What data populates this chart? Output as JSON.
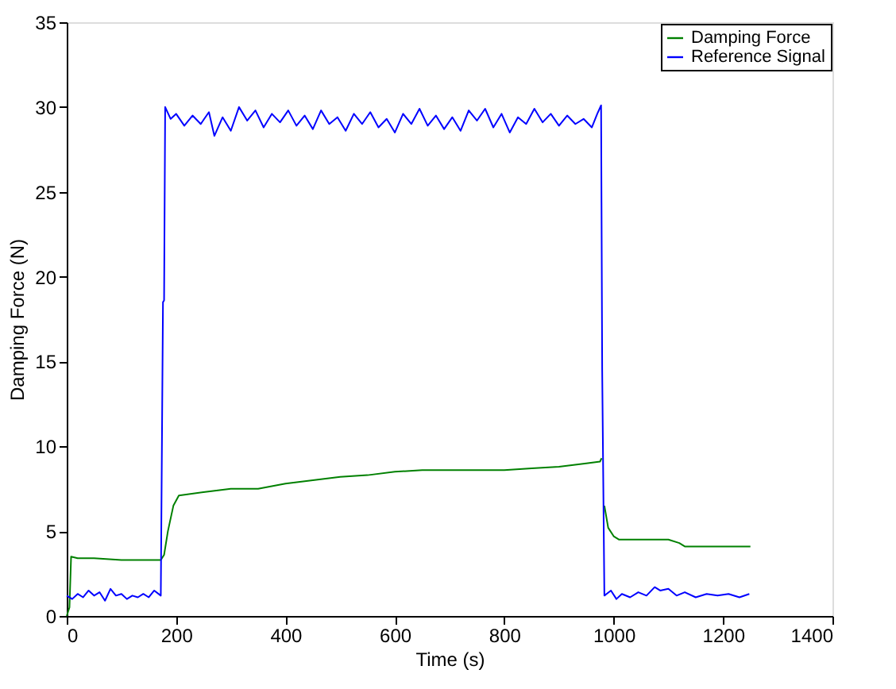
{
  "chart_data": {
    "type": "line",
    "xlabel": "Time (s)",
    "ylabel": "Damping Force (N)",
    "xlim": [
      0,
      1400
    ],
    "xticks": [
      0,
      200,
      400,
      600,
      800,
      1000,
      1200,
      1400
    ],
    "ylim": [
      0,
      35
    ],
    "yticks": [
      0,
      5,
      10,
      15,
      20,
      25,
      30,
      35
    ],
    "grid": false,
    "legend": "top right",
    "marker": "none",
    "line_style": "solid",
    "series": [
      {
        "name": "Damping Force",
        "color": "#008000",
        "x": [
          0,
          5,
          8,
          20,
          50,
          100,
          150,
          172,
          178,
          185,
          195,
          205,
          250,
          300,
          350,
          400,
          450,
          500,
          550,
          600,
          650,
          700,
          750,
          800,
          850,
          900,
          950,
          975,
          978,
          980,
          983,
          990,
          1000,
          1010,
          1050,
          1100,
          1120,
          1130,
          1200,
          1250
        ],
        "values": [
          0,
          0.5,
          3.5,
          3.4,
          3.4,
          3.3,
          3.3,
          3.3,
          3.6,
          5.0,
          6.5,
          7.1,
          7.3,
          7.5,
          7.5,
          7.8,
          8.0,
          8.2,
          8.3,
          8.5,
          8.6,
          8.6,
          8.6,
          8.6,
          8.7,
          8.8,
          9.0,
          9.1,
          9.3,
          null,
          6.5,
          5.2,
          4.7,
          4.5,
          4.5,
          4.5,
          4.3,
          4.1,
          4.1,
          4.1
        ]
      },
      {
        "name": "Reference Signal",
        "color": "#0000ff",
        "x": [
          0,
          10,
          20,
          30,
          40,
          50,
          60,
          70,
          80,
          90,
          100,
          110,
          120,
          130,
          140,
          150,
          160,
          172,
          176,
          178,
          180,
          190,
          200,
          215,
          230,
          245,
          260,
          270,
          285,
          300,
          315,
          330,
          345,
          360,
          375,
          390,
          405,
          420,
          435,
          450,
          465,
          480,
          495,
          510,
          525,
          540,
          555,
          570,
          585,
          600,
          615,
          630,
          645,
          660,
          675,
          690,
          705,
          720,
          735,
          750,
          765,
          780,
          795,
          810,
          825,
          840,
          855,
          870,
          885,
          900,
          915,
          930,
          945,
          960,
          970,
          977,
          979,
          983,
          995,
          1005,
          1015,
          1030,
          1045,
          1060,
          1075,
          1085,
          1100,
          1115,
          1130,
          1150,
          1170,
          1190,
          1210,
          1230,
          1248
        ],
        "values": [
          1.2,
          1.0,
          1.3,
          1.1,
          1.5,
          1.2,
          1.4,
          0.9,
          1.6,
          1.2,
          1.3,
          1.0,
          1.2,
          1.1,
          1.3,
          1.1,
          1.5,
          1.2,
          18.5,
          18.6,
          30.0,
          29.3,
          29.6,
          28.9,
          29.5,
          29.0,
          29.7,
          28.3,
          29.4,
          28.6,
          30.0,
          29.2,
          29.8,
          28.8,
          29.6,
          29.1,
          29.8,
          28.9,
          29.5,
          28.7,
          29.8,
          29.0,
          29.4,
          28.6,
          29.6,
          29.0,
          29.7,
          28.8,
          29.3,
          28.5,
          29.6,
          29.0,
          29.9,
          28.9,
          29.5,
          28.7,
          29.4,
          28.6,
          29.8,
          29.2,
          29.9,
          28.8,
          29.6,
          28.5,
          29.4,
          29.0,
          29.9,
          29.1,
          29.6,
          28.9,
          29.5,
          29.0,
          29.3,
          28.8,
          29.6,
          30.1,
          14.5,
          1.2,
          1.5,
          1.0,
          1.3,
          1.1,
          1.4,
          1.2,
          1.7,
          1.5,
          1.6,
          1.2,
          1.4,
          1.1,
          1.3,
          1.2,
          1.3,
          1.1,
          1.3
        ]
      }
    ]
  }
}
